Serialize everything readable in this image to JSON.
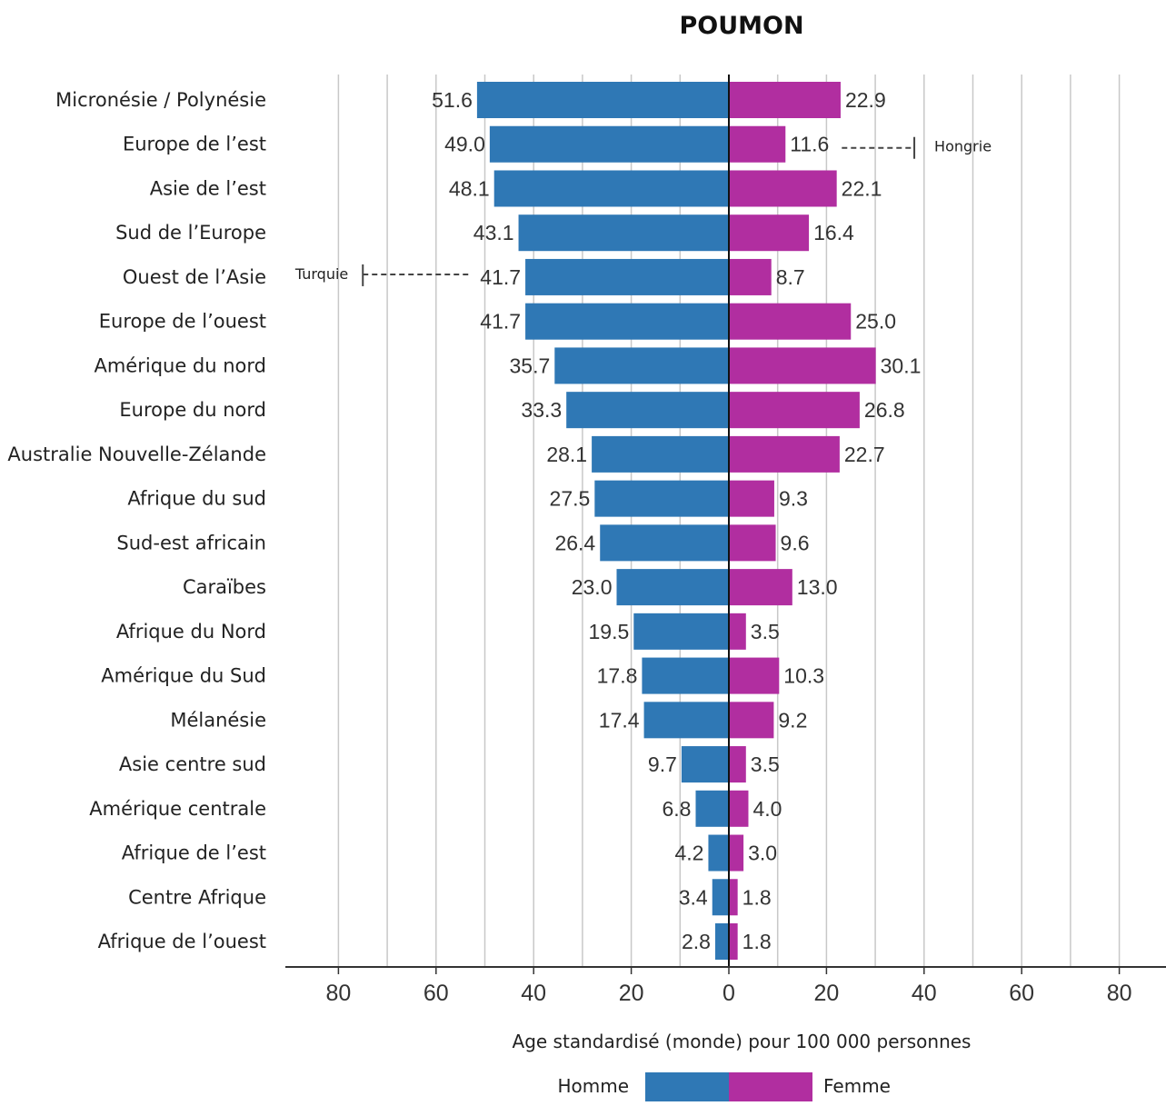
{
  "chart_data": {
    "type": "bar",
    "title": "POUMON",
    "xlabel": "Age standardisé (monde) pour 100 000 personnes",
    "categories": [
      "Micronésie / Polynésie",
      "Europe de l’est",
      "Asie de l’est",
      "Sud de l’Europe",
      "Ouest de l’Asie",
      "Europe de l’ouest",
      "Amérique du nord",
      "Europe du nord",
      "Australie Nouvelle-Zélande",
      "Afrique du sud",
      "Sud-est africain",
      "Caraïbes",
      "Afrique du Nord",
      "Amérique du Sud",
      "Mélanésie",
      "Asie centre sud",
      "Amérique centrale",
      "Afrique de l’est",
      "Centre  Afrique",
      "Afrique de l’ouest"
    ],
    "series": [
      {
        "name": "Homme",
        "color": "#2f78b5",
        "values": [
          51.6,
          49.0,
          48.1,
          43.1,
          41.7,
          41.7,
          35.7,
          33.3,
          28.1,
          27.5,
          26.4,
          23.0,
          19.5,
          17.8,
          17.4,
          9.7,
          6.8,
          4.2,
          3.4,
          2.8
        ],
        "labels": [
          "51.6",
          "49.0",
          "48.1",
          "43.1",
          "41.7",
          "41.7",
          "35.7",
          "33.3",
          "28.1",
          "27.5",
          "26.4",
          "23.0",
          "19.5",
          "17.8",
          "17.4",
          "9.7",
          "6.8",
          "4.2",
          "3.4",
          "2.8"
        ]
      },
      {
        "name": "Femme",
        "color": "#b12ea0",
        "values": [
          22.9,
          11.6,
          22.1,
          16.4,
          8.7,
          25.0,
          30.1,
          26.8,
          22.7,
          9.3,
          9.6,
          13.0,
          3.5,
          10.3,
          9.2,
          3.5,
          4.0,
          3.0,
          1.8,
          1.8
        ],
        "labels": [
          "22.9",
          "11.6",
          "22.1",
          "16.4",
          "8.7",
          "25.0",
          "30.1",
          "26.8",
          "22.7",
          "9.3",
          "9.6",
          "13.0",
          "3.5",
          "10.3",
          "9.2",
          "3.5",
          "4.0",
          "3.0",
          "1.8",
          "1.8"
        ]
      }
    ],
    "xticks": [
      "80",
      "60",
      "40",
      "20",
      "0",
      "20",
      "40",
      "60",
      "80"
    ],
    "xlim": [
      -80,
      80
    ],
    "grid": true,
    "legend": "bottom",
    "annotations": [
      {
        "text": "Turquie",
        "category_index": 4,
        "side": "Homme",
        "value": 75
      },
      {
        "text": "Hongrie",
        "category_index": 1,
        "side": "Femme",
        "value": 38
      }
    ]
  }
}
